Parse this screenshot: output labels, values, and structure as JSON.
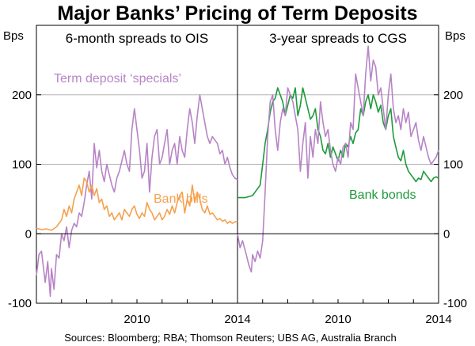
{
  "chart_data": {
    "type": "line",
    "title": "Major Banks’ Pricing of Term Deposits",
    "source": "Sources: Bloomberg; RBA; Thomson Reuters; UBS AG, Australia Branch",
    "y_unit_left": "Bps",
    "y_unit_right": "Bps",
    "ylim": [
      -100,
      300
    ],
    "yticks": [
      -100,
      0,
      100,
      200
    ],
    "xlim": [
      2006.0,
      2014.0
    ],
    "xticks": [
      2010,
      2014
    ],
    "colors": {
      "specials": "#b784c6",
      "bills": "#f6a04d",
      "bonds": "#1e9a3a"
    },
    "panels": [
      {
        "title": "6-month spreads to OIS",
        "series": [
          {
            "name": "Term deposit ‘specials’",
            "color_key": "specials",
            "x": [
              2006.0,
              2006.1,
              2006.2,
              2006.35,
              2006.45,
              2006.55,
              2006.6,
              2006.7,
              2006.8,
              2006.9,
              2007.0,
              2007.1,
              2007.2,
              2007.3,
              2007.4,
              2007.5,
              2007.6,
              2007.7,
              2007.8,
              2007.9,
              2008.0,
              2008.1,
              2008.2,
              2008.3,
              2008.4,
              2008.5,
              2008.6,
              2008.7,
              2008.8,
              2008.9,
              2009.0,
              2009.1,
              2009.2,
              2009.3,
              2009.4,
              2009.5,
              2009.6,
              2009.7,
              2009.8,
              2009.9,
              2010.0,
              2010.1,
              2010.2,
              2010.3,
              2010.4,
              2010.5,
              2010.6,
              2010.7,
              2010.8,
              2010.9,
              2011.0,
              2011.1,
              2011.2,
              2011.3,
              2011.4,
              2011.5,
              2011.6,
              2011.7,
              2011.8,
              2011.9,
              2012.0,
              2012.1,
              2012.2,
              2012.3,
              2012.4,
              2012.5,
              2012.6,
              2012.7,
              2012.8,
              2012.9,
              2013.0,
              2013.1,
              2013.2,
              2013.3,
              2013.4,
              2013.5,
              2013.6,
              2013.7,
              2013.8,
              2013.9,
              2014.0
            ],
            "y": [
              -60,
              -30,
              -25,
              -70,
              -40,
              -90,
              -50,
              -80,
              -30,
              -35,
              0,
              -10,
              10,
              -20,
              5,
              15,
              10,
              30,
              25,
              45,
              70,
              90,
              50,
              130,
              95,
              120,
              90,
              75,
              100,
              85,
              70,
              60,
              80,
              90,
              105,
              120,
              100,
              90,
              150,
              180,
              150,
              120,
              80,
              90,
              130,
              60,
              110,
              140,
              150,
              100,
              110,
              130,
              150,
              100,
              120,
              130,
              100,
              140,
              120,
              110,
              150,
              180,
              160,
              130,
              170,
              200,
              180,
              160,
              140,
              130,
              140,
              135,
              130,
              115,
              120,
              100,
              110,
              95,
              85,
              80,
              78
            ]
          },
          {
            "name": "Bank bills",
            "color_key": "bills",
            "x": [
              2006.0,
              2006.2,
              2006.4,
              2006.6,
              2006.8,
              2007.0,
              2007.1,
              2007.2,
              2007.3,
              2007.4,
              2007.5,
              2007.6,
              2007.7,
              2007.8,
              2007.9,
              2008.0,
              2008.1,
              2008.2,
              2008.3,
              2008.4,
              2008.5,
              2008.6,
              2008.7,
              2008.8,
              2008.9,
              2009.0,
              2009.1,
              2009.2,
              2009.3,
              2009.4,
              2009.5,
              2009.6,
              2009.7,
              2009.8,
              2009.9,
              2010.0,
              2010.1,
              2010.2,
              2010.3,
              2010.4,
              2010.5,
              2010.6,
              2010.7,
              2010.8,
              2010.9,
              2011.0,
              2011.1,
              2011.2,
              2011.3,
              2011.4,
              2011.5,
              2011.6,
              2011.7,
              2011.8,
              2011.9,
              2012.0,
              2012.1,
              2012.2,
              2012.3,
              2012.4,
              2012.5,
              2012.6,
              2012.7,
              2012.8,
              2012.9,
              2013.0,
              2013.1,
              2013.2,
              2013.3,
              2013.4,
              2013.5,
              2013.6,
              2013.7,
              2013.8,
              2013.9,
              2014.0
            ],
            "y": [
              8,
              6,
              7,
              5,
              10,
              20,
              35,
              25,
              40,
              30,
              50,
              60,
              70,
              55,
              80,
              75,
              60,
              70,
              55,
              65,
              45,
              50,
              35,
              40,
              25,
              30,
              20,
              25,
              30,
              20,
              35,
              30,
              25,
              35,
              40,
              28,
              22,
              30,
              25,
              45,
              35,
              30,
              20,
              25,
              30,
              20,
              25,
              35,
              28,
              40,
              30,
              45,
              55,
              60,
              30,
              50,
              40,
              70,
              45,
              60,
              50,
              35,
              30,
              40,
              28,
              30,
              25,
              20,
              22,
              18,
              20,
              15,
              18,
              15,
              17,
              18
            ]
          }
        ]
      },
      {
        "title": "3-year spreads to CGS",
        "series": [
          {
            "name": "Bank bonds",
            "color_key": "bonds",
            "x": [
              2006.0,
              2006.3,
              2006.6,
              2006.9,
              2007.0,
              2007.1,
              2007.2,
              2007.3,
              2007.4,
              2007.5,
              2007.6,
              2007.7,
              2007.8,
              2007.9,
              2008.0,
              2008.1,
              2008.2,
              2008.3,
              2008.4,
              2008.5,
              2008.6,
              2008.7,
              2008.8,
              2008.9,
              2009.0,
              2009.1,
              2009.2,
              2009.3,
              2009.4,
              2009.5,
              2009.6,
              2009.7,
              2009.8,
              2009.9,
              2010.0,
              2010.1,
              2010.2,
              2010.3,
              2010.4,
              2010.5,
              2010.6,
              2010.7,
              2010.8,
              2010.9,
              2011.0,
              2011.1,
              2011.2,
              2011.3,
              2011.4,
              2011.5,
              2011.6,
              2011.7,
              2011.8,
              2011.9,
              2012.0,
              2012.1,
              2012.2,
              2012.3,
              2012.4,
              2012.5,
              2012.6,
              2012.7,
              2012.8,
              2012.9,
              2013.0,
              2013.1,
              2013.2,
              2013.3,
              2013.4,
              2013.5,
              2013.6,
              2013.7,
              2013.8,
              2013.9,
              2014.0
            ],
            "y": [
              52,
              52,
              55,
              70,
              100,
              130,
              150,
              175,
              190,
              195,
              210,
              200,
              190,
              170,
              185,
              200,
              195,
              210,
              170,
              185,
              210,
              195,
              180,
              165,
              170,
              180,
              150,
              140,
              120,
              115,
              130,
              110,
              125,
              115,
              105,
              120,
              110,
              130,
              125,
              140,
              130,
              145,
              150,
              180,
              170,
              190,
              200,
              180,
              200,
              190,
              175,
              185,
              160,
              150,
              170,
              180,
              140,
              125,
              110,
              105,
              120,
              100,
              90,
              85,
              80,
              75,
              80,
              78,
              90,
              85,
              80,
              75,
              80,
              82,
              80
            ]
          },
          {
            "name": "Term deposit ‘specials’",
            "color_key": "specials",
            "x": [
              2006.0,
              2006.1,
              2006.2,
              2006.35,
              2006.45,
              2006.55,
              2006.6,
              2006.7,
              2006.8,
              2006.9,
              2007.0,
              2007.1,
              2007.2,
              2007.3,
              2007.4,
              2007.5,
              2007.6,
              2007.7,
              2007.8,
              2007.9,
              2008.0,
              2008.1,
              2008.2,
              2008.3,
              2008.4,
              2008.5,
              2008.6,
              2008.7,
              2008.8,
              2008.9,
              2009.0,
              2009.1,
              2009.2,
              2009.3,
              2009.4,
              2009.5,
              2009.6,
              2009.7,
              2009.8,
              2009.9,
              2010.0,
              2010.1,
              2010.2,
              2010.3,
              2010.4,
              2010.5,
              2010.6,
              2010.7,
              2010.8,
              2010.9,
              2011.0,
              2011.1,
              2011.2,
              2011.3,
              2011.4,
              2011.5,
              2011.6,
              2011.7,
              2011.8,
              2011.9,
              2012.0,
              2012.1,
              2012.2,
              2012.3,
              2012.4,
              2012.5,
              2012.6,
              2012.7,
              2012.8,
              2012.9,
              2013.0,
              2013.1,
              2013.2,
              2013.3,
              2013.4,
              2013.5,
              2013.6,
              2013.7,
              2013.8,
              2013.9,
              2014.0
            ],
            "y": [
              0,
              -20,
              -10,
              -30,
              -45,
              -55,
              -30,
              -40,
              -25,
              -35,
              -10,
              60,
              140,
              190,
              200,
              150,
              120,
              160,
              180,
              170,
              210,
              200,
              190,
              170,
              150,
              90,
              130,
              160,
              80,
              140,
              110,
              150,
              130,
              190,
              160,
              140,
              150,
              120,
              100,
              90,
              110,
              100,
              125,
              130,
              110,
              160,
              150,
              230,
              210,
              190,
              170,
              230,
              270,
              220,
              250,
              240,
              200,
              210,
              180,
              150,
              200,
              230,
              180,
              160,
              170,
              150,
              180,
              160,
              175,
              140,
              150,
              160,
              135,
              120,
              140,
              125,
              110,
              100,
              105,
              110,
              120
            ]
          }
        ]
      }
    ],
    "series_labels": {
      "specials": "Term deposit ‘specials’",
      "bills": "Bank bills",
      "bonds": "Bank bonds"
    }
  }
}
